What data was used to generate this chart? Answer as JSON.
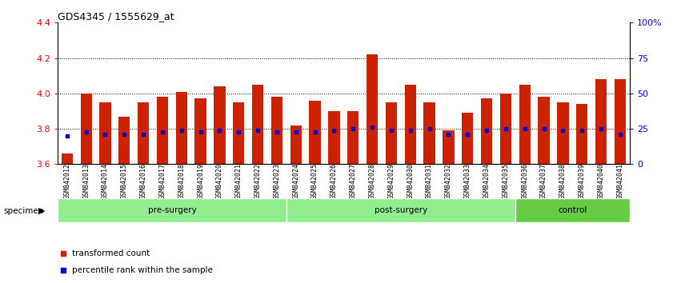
{
  "title": "GDS4345 / 1555629_at",
  "samples": [
    "GSM842012",
    "GSM842013",
    "GSM842014",
    "GSM842015",
    "GSM842016",
    "GSM842017",
    "GSM842018",
    "GSM842019",
    "GSM842020",
    "GSM842021",
    "GSM842022",
    "GSM842023",
    "GSM842024",
    "GSM842025",
    "GSM842026",
    "GSM842027",
    "GSM842028",
    "GSM842029",
    "GSM842030",
    "GSM842031",
    "GSM842032",
    "GSM842033",
    "GSM842034",
    "GSM842035",
    "GSM842036",
    "GSM842037",
    "GSM842038",
    "GSM842039",
    "GSM842040",
    "GSM842041"
  ],
  "red_values": [
    3.66,
    4.0,
    3.95,
    3.87,
    3.95,
    3.98,
    4.01,
    3.97,
    4.04,
    3.95,
    4.05,
    3.98,
    3.82,
    3.96,
    3.9,
    3.9,
    4.22,
    3.95,
    4.05,
    3.95,
    3.79,
    3.89,
    3.97,
    4.0,
    4.05,
    3.98,
    3.95,
    3.94,
    4.08,
    4.08
  ],
  "blue_values": [
    3.76,
    3.78,
    3.77,
    3.77,
    3.77,
    3.78,
    3.79,
    3.78,
    3.79,
    3.78,
    3.79,
    3.78,
    3.78,
    3.78,
    3.79,
    3.8,
    3.81,
    3.79,
    3.79,
    3.8,
    3.77,
    3.77,
    3.79,
    3.8,
    3.8,
    3.8,
    3.79,
    3.79,
    3.8,
    3.77
  ],
  "groups": [
    {
      "label": "pre-surgery",
      "start": 0,
      "end": 12,
      "color": "#90EE90"
    },
    {
      "label": "post-surgery",
      "start": 12,
      "end": 24,
      "color": "#90EE90"
    },
    {
      "label": "control",
      "start": 24,
      "end": 30,
      "color": "#66CC44"
    }
  ],
  "ylim_left": [
    3.6,
    4.4
  ],
  "ylim_right": [
    0,
    100
  ],
  "right_ticks": [
    0,
    25,
    50,
    75,
    100
  ],
  "right_ticklabels": [
    "0",
    "25",
    "50",
    "75",
    "100%"
  ],
  "left_ticks": [
    3.6,
    3.8,
    4.0,
    4.2,
    4.4
  ],
  "dotted_lines": [
    3.8,
    4.0,
    4.2
  ],
  "bar_color": "#CC2200",
  "dot_color": "#0000CC",
  "baseline": 3.6,
  "bar_width": 0.6,
  "legend": [
    {
      "color": "#CC2200",
      "label": "transformed count"
    },
    {
      "color": "#0000CC",
      "label": "percentile rank within the sample"
    }
  ]
}
